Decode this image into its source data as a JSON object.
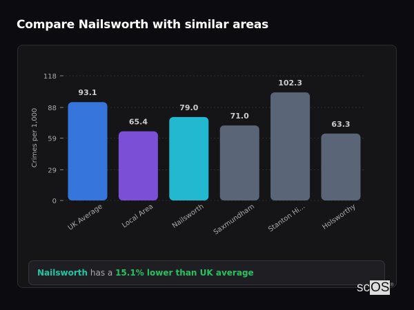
{
  "title": "Compare Nailsworth with similar areas",
  "chart_data": {
    "type": "bar",
    "title": "",
    "xlabel": "",
    "ylabel": "Crimes per 1,000",
    "ylim": [
      0,
      118
    ],
    "yticks": [
      0,
      29,
      59,
      88,
      118
    ],
    "grid": true,
    "categories": [
      "UK Average",
      "Local Area",
      "Nailsworth",
      "Saxmundham",
      "Stanton Hi...",
      "Holsworthy"
    ],
    "values": [
      93.1,
      65.4,
      79.0,
      71.0,
      102.3,
      63.3
    ],
    "value_labels": [
      "93.1",
      "65.4",
      "79.0",
      "71.0",
      "102.3",
      "63.3"
    ],
    "colors": [
      "#3575dc",
      "#7b4fd6",
      "#22b8d0",
      "#5a6678",
      "#5a6678",
      "#5a6678"
    ]
  },
  "callout": {
    "area": "Nailsworth",
    "middle": " has a ",
    "comparison": "15.1% lower than UK average"
  },
  "watermark": {
    "a": "sc",
    "b": "OS",
    "mark": "®"
  }
}
